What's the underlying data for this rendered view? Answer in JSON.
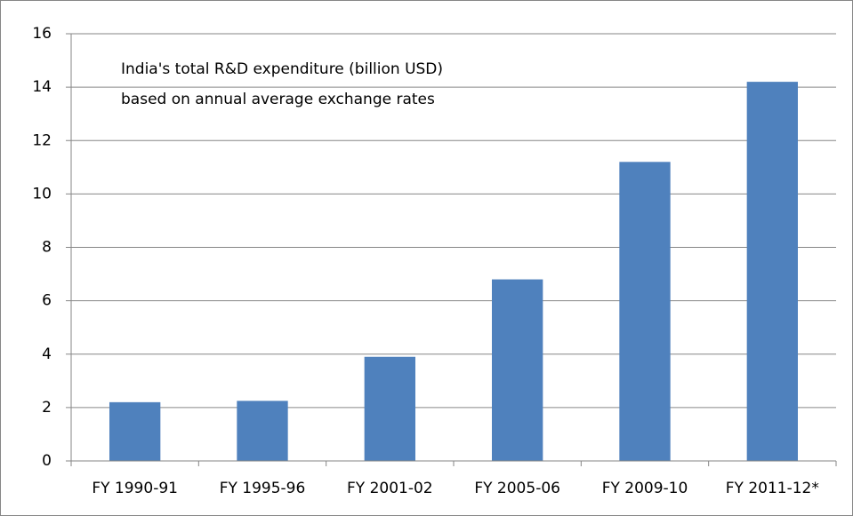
{
  "chart_data": {
    "type": "bar",
    "annotations": [
      "India's total R&D expenditure (billion USD)",
      "based on annual average exchange rates"
    ],
    "categories": [
      "FY 1990-91",
      "FY 1995-96",
      "FY 2001-02",
      "FY 2005-06",
      "FY 2009-10",
      "FY 2011-12*"
    ],
    "values": [
      2.2,
      2.25,
      3.9,
      6.8,
      11.2,
      14.2
    ],
    "color": "#4f81bd",
    "ylim": [
      0,
      16
    ],
    "yticks": [
      0,
      2,
      4,
      6,
      8,
      10,
      12,
      14,
      16
    ],
    "grid": true
  }
}
